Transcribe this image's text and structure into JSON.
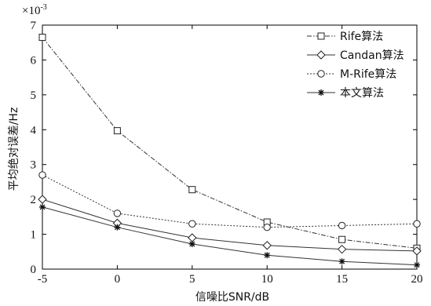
{
  "chart_data": {
    "type": "line",
    "x": [
      -5,
      0,
      5,
      10,
      15,
      20
    ],
    "xlabel": "信噪比SNR/dB",
    "ylabel": "平均绝对误差/Hz",
    "y_exponent_label": "×10",
    "y_exponent_power": "-3",
    "xlim": [
      -5,
      20
    ],
    "ylim": [
      0,
      7
    ],
    "xticks": [
      "-5",
      "0",
      "5",
      "10",
      "15",
      "20"
    ],
    "yticks": [
      "0",
      "1",
      "2",
      "3",
      "4",
      "5",
      "6",
      "7"
    ],
    "grid": false,
    "legend_position": "top-right",
    "series": [
      {
        "name": "Rife算法",
        "marker": "square",
        "dash": "dashdot",
        "values": [
          6.65,
          3.97,
          2.28,
          1.35,
          0.85,
          0.6
        ]
      },
      {
        "name": "Candan算法",
        "marker": "diamond",
        "dash": "solid",
        "values": [
          2.0,
          1.32,
          0.9,
          0.68,
          0.57,
          0.52
        ]
      },
      {
        "name": "M-Rife算法",
        "marker": "circle",
        "dash": "dotted",
        "values": [
          2.7,
          1.6,
          1.3,
          1.2,
          1.25,
          1.3
        ]
      },
      {
        "name": "本文算法",
        "marker": "star",
        "dash": "solid",
        "values": [
          1.78,
          1.2,
          0.72,
          0.4,
          0.22,
          0.12
        ]
      }
    ]
  }
}
